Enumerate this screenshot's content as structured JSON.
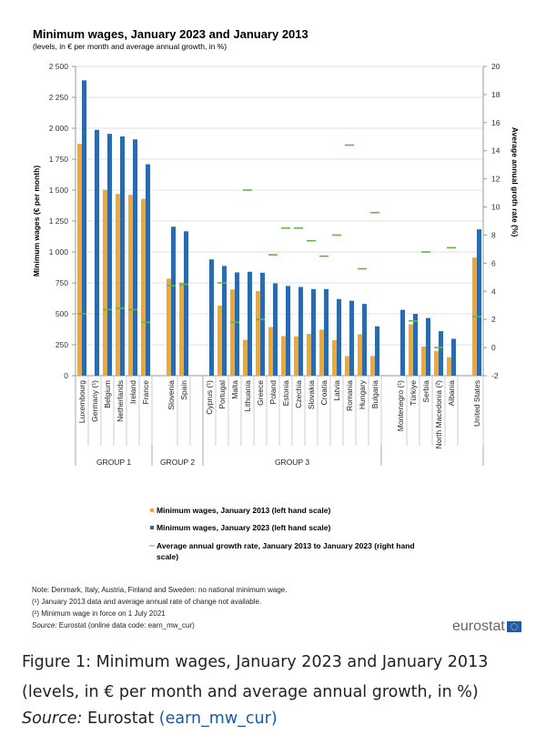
{
  "chart_data": {
    "type": "bar",
    "title": "Minimum wages, January 2023 and January 2013",
    "subtitle": "(levels, in € per month and average annual growth, in %)",
    "ylabel": "Minimum wages (€ per month)",
    "y2label": "Average annual groth rate (%)",
    "ylim": [
      0,
      2500
    ],
    "y2lim": [
      -2,
      20
    ],
    "yticks": [
      "0",
      "250",
      "500",
      "750",
      "1 000",
      "1 250",
      "1 500",
      "1 750",
      "2 000",
      "2 250",
      "2 500"
    ],
    "y2ticks": [
      "-2",
      "0",
      "2",
      "4",
      "6",
      "8",
      "10",
      "12",
      "14",
      "16",
      "18",
      "20"
    ],
    "grid": true,
    "groups": [
      {
        "label": "GROUP 1",
        "categories": [
          "Luxembourg",
          "Germany (¹)",
          "Belgium",
          "Netherlands",
          "Ireland",
          "France"
        ]
      },
      {
        "label": "GROUP 2",
        "categories": [
          "Slovenia",
          "Spain"
        ]
      },
      {
        "label": "GROUP 3",
        "categories": [
          "Cyprus (¹)",
          "Portugal",
          "Malta",
          "Lithuania",
          "Greece",
          "Poland",
          "Estonia",
          "Czechia",
          "Slovakia",
          "Croatia",
          "Latvia",
          "Romania",
          "Hungary",
          "Bulgaria"
        ]
      },
      {
        "label": "",
        "categories": [
          "Montenegro (¹)",
          "Türkiye",
          "Serbia",
          "North Macedonia (²)",
          "Albania"
        ]
      },
      {
        "label": "",
        "categories": [
          "United States"
        ]
      }
    ],
    "series": [
      {
        "name": "Minimum wages, January 2013 (left hand scale)",
        "color": "#f0a830",
        "values": [
          1874,
          null,
          1502,
          1469,
          1462,
          1430,
          784,
          753,
          null,
          566,
          697,
          290,
          684,
          393,
          320,
          318,
          338,
          372,
          287,
          158,
          335,
          159,
          null,
          415,
          236,
          200,
          150,
          955
        ]
      },
      {
        "name": "Minimum wages, January 2023 (left hand scale)",
        "color": "#2a6aad",
        "values": [
          2387,
          1987,
          1955,
          1934,
          1910,
          1709,
          1204,
          1167,
          940,
          887,
          835,
          840,
          832,
          746,
          725,
          717,
          700,
          700,
          620,
          606,
          580,
          399,
          532,
          500,
          466,
          360,
          298,
          1183
        ]
      },
      {
        "name": "Average annual growth rate, January 2013 to January 2023 (right hand scale)",
        "color": "#6ab04c",
        "values": [
          2.4,
          null,
          2.7,
          2.8,
          2.7,
          1.8,
          4.4,
          4.5,
          null,
          4.6,
          1.8,
          11.2,
          2.0,
          6.6,
          8.5,
          8.5,
          7.6,
          6.5,
          8.0,
          14.4,
          5.6,
          9.6,
          null,
          1.9,
          6.8,
          0.0,
          7.1,
          2.2
        ]
      }
    ],
    "legend_position": "bottom"
  },
  "notes": [
    "Note: Denmark, Italy, Austria, Finland and Sweden: no national minimum wage.",
    "(¹) January 2013 data and average annual rate of change not available.",
    "(²) Minimum wage in force on 1 July 2021"
  ],
  "source_label": "Source:",
  "source_text": " Eurostat (online data code: earn_mw_cur)",
  "logo": "eurostat",
  "caption": "Figure 1: Minimum wages, January 2023 and January 2013 (levels, in € per month and average annual growth, in %)",
  "caption_source_label": "Source:",
  "caption_source_text": " Eurostat ",
  "caption_source_link": "(earn_mw_cur)"
}
